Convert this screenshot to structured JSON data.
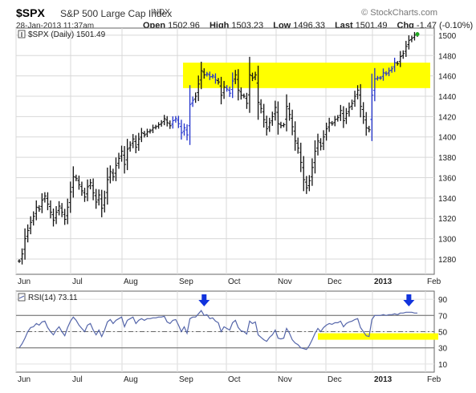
{
  "header": {
    "symbol": "$SPX",
    "name": "S&P 500 Large Cap Index",
    "exchange": "INDX",
    "brand": "© StockCharts.com",
    "timestamp": "28-Jan-2013 11:37am",
    "open_label": "Open",
    "open": "1502.96",
    "high_label": "High",
    "high": "1503.23",
    "low_label": "Low",
    "low": "1496.33",
    "last_label": "Last",
    "last": "1501.49",
    "chg_label": "Chg",
    "chg": "-1.47 (-0.10%)"
  },
  "chart_data": [
    {
      "type": "ohlc",
      "legend": "$SPX (Daily) 1501.49",
      "x_labels": [
        "Jun",
        "Jul",
        "Aug",
        "Sep",
        "Oct",
        "Nov",
        "Dec",
        "2013",
        "Feb"
      ],
      "y_ticks": [
        1280,
        1300,
        1320,
        1340,
        1360,
        1380,
        1400,
        1420,
        1440,
        1460,
        1480,
        1500
      ],
      "ylim": [
        1265,
        1507
      ],
      "grid": true,
      "highlight_band": {
        "y0": 1448,
        "y1": 1473,
        "color": "#ffff00"
      },
      "closes": [
        1278,
        1285,
        1300,
        1308,
        1316,
        1322,
        1331,
        1329,
        1338,
        1342,
        1334,
        1326,
        1318,
        1326,
        1332,
        1326,
        1319,
        1331,
        1346,
        1361,
        1359,
        1353,
        1347,
        1341,
        1351,
        1355,
        1345,
        1336,
        1343,
        1330,
        1340,
        1358,
        1366,
        1361,
        1372,
        1379,
        1386,
        1373,
        1388,
        1392,
        1398,
        1390,
        1398,
        1404,
        1402,
        1405,
        1406,
        1409,
        1410,
        1412,
        1414,
        1418,
        1414,
        1411,
        1416,
        1418,
        1413,
        1404,
        1409,
        1402,
        1432,
        1436,
        1440,
        1452,
        1465,
        1461,
        1462,
        1459,
        1460,
        1456,
        1454,
        1441,
        1449,
        1447,
        1443,
        1455,
        1461,
        1446,
        1441,
        1440,
        1433,
        1461,
        1458,
        1461,
        1434,
        1428,
        1417,
        1408,
        1414,
        1420,
        1429,
        1413,
        1411,
        1412,
        1430,
        1422,
        1410,
        1396,
        1389,
        1375,
        1358,
        1350,
        1357,
        1370,
        1386,
        1396,
        1391,
        1400,
        1408,
        1414,
        1413,
        1417,
        1419,
        1426,
        1416,
        1423,
        1429,
        1433,
        1440,
        1446,
        1430,
        1420,
        1409,
        1407,
        1441,
        1457,
        1458,
        1458,
        1463,
        1462,
        1465,
        1467,
        1473,
        1472,
        1479,
        1482,
        1489,
        1495,
        1497,
        1500,
        1501
      ],
      "blue_bars": [
        [
          54,
          61
        ],
        [
          66,
          69
        ],
        [
          73,
          75
        ],
        [
          124,
          132
        ]
      ]
    },
    {
      "type": "line",
      "legend": "RSI(14) 73.11",
      "x_labels": [
        "Jun",
        "Jul",
        "Aug",
        "Sep",
        "Oct",
        "Nov",
        "Dec",
        "2013",
        "Feb"
      ],
      "y_ticks": [
        10,
        30,
        50,
        70,
        90
      ],
      "ylim": [
        0,
        100
      ],
      "reference_lines": [
        30,
        50,
        70
      ],
      "highlight_band": {
        "y0": 40,
        "y1": 48,
        "color": "#ffff00"
      },
      "arrows_at_index": [
        65,
        137
      ],
      "values": [
        30,
        35,
        42,
        50,
        55,
        56,
        60,
        58,
        62,
        63,
        55,
        50,
        46,
        52,
        56,
        50,
        45,
        55,
        63,
        68,
        64,
        58,
        54,
        50,
        58,
        60,
        52,
        46,
        52,
        44,
        52,
        62,
        65,
        60,
        64,
        66,
        68,
        56,
        64,
        66,
        68,
        60,
        64,
        66,
        64,
        66,
        66,
        67,
        67,
        68,
        68,
        69,
        62,
        60,
        64,
        65,
        58,
        50,
        56,
        48,
        66,
        68,
        68,
        72,
        76,
        70,
        71,
        66,
        67,
        63,
        61,
        50,
        56,
        54,
        52,
        61,
        64,
        55,
        51,
        50,
        47,
        63,
        60,
        62,
        46,
        43,
        40,
        38,
        43,
        46,
        52,
        42,
        41,
        42,
        54,
        48,
        40,
        36,
        34,
        30,
        29,
        28,
        33,
        40,
        48,
        54,
        50,
        55,
        58,
        60,
        59,
        61,
        61,
        63,
        56,
        60,
        62,
        63,
        65,
        66,
        55,
        50,
        45,
        44,
        65,
        70,
        70,
        70,
        71,
        70,
        71,
        71,
        72,
        71,
        73,
        73,
        74,
        74,
        74,
        73,
        73
      ]
    }
  ]
}
